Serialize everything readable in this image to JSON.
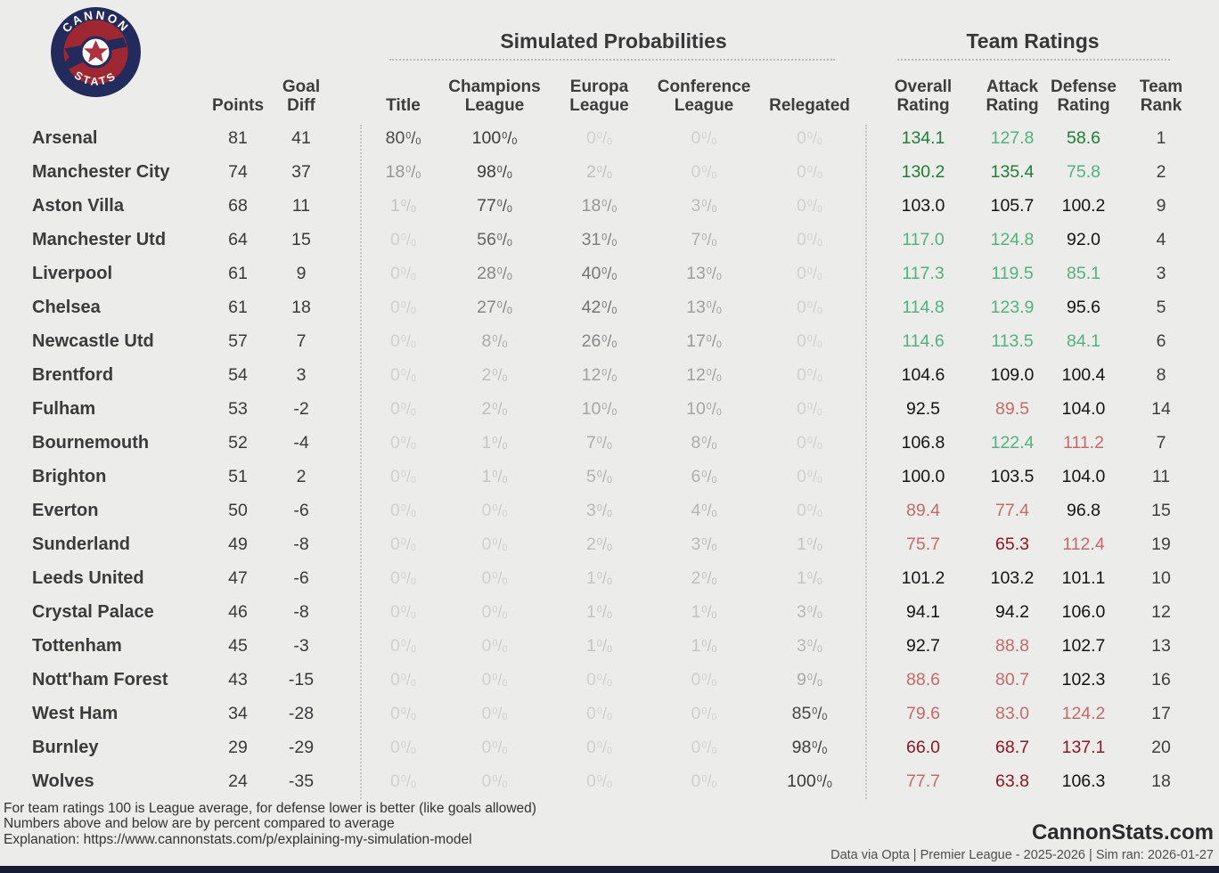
{
  "logo": {
    "top_text": "CANNON",
    "bottom_text": "STATS"
  },
  "colors": {
    "background": "#ececeb",
    "accent_navy": "#232a5c",
    "accent_red": "#9e2732",
    "green_strong": "#1e7e33",
    "green_mid": "#52b27d",
    "neutral": "#141414",
    "red_light": "#c66a6a",
    "red_strong": "#8f1622",
    "bottom_bar": "#171c33"
  },
  "chart_data": {
    "type": "table",
    "sections": {
      "probabilities": "Simulated Probabilities",
      "ratings": "Team Ratings"
    },
    "columns": {
      "points": "Points",
      "goal_diff": "Goal\nDiff",
      "title": "Title",
      "champions": "Champions\nLeague",
      "europa": "Europa\nLeague",
      "conference": "Conference\nLeague",
      "relegated": "Relegated",
      "overall": "Overall\nRating",
      "attack": "Attack\nRating",
      "defense": "Defense\nRating",
      "rank": "Team\nRank"
    },
    "rows": [
      {
        "team": "Arsenal",
        "points": 81,
        "goal_diff": 41,
        "probs": {
          "title": 80,
          "champions": 100,
          "europa": 0,
          "conference": 0,
          "relegated": 0
        },
        "ratings": {
          "overall": {
            "value": "134.1",
            "tone": "green_strong"
          },
          "attack": {
            "value": "127.8",
            "tone": "green_mid"
          },
          "defense": {
            "value": "58.6",
            "tone": "green_strong"
          }
        },
        "rank": 1
      },
      {
        "team": "Manchester City",
        "points": 74,
        "goal_diff": 37,
        "probs": {
          "title": 18,
          "champions": 98,
          "europa": 2,
          "conference": 0,
          "relegated": 0
        },
        "ratings": {
          "overall": {
            "value": "130.2",
            "tone": "green_strong"
          },
          "attack": {
            "value": "135.4",
            "tone": "green_strong"
          },
          "defense": {
            "value": "75.8",
            "tone": "green_mid"
          }
        },
        "rank": 2
      },
      {
        "team": "Aston Villa",
        "points": 68,
        "goal_diff": 11,
        "probs": {
          "title": 1,
          "champions": 77,
          "europa": 18,
          "conference": 3,
          "relegated": 0
        },
        "ratings": {
          "overall": {
            "value": "103.0",
            "tone": "neutral"
          },
          "attack": {
            "value": "105.7",
            "tone": "neutral"
          },
          "defense": {
            "value": "100.2",
            "tone": "neutral"
          }
        },
        "rank": 9
      },
      {
        "team": "Manchester Utd",
        "points": 64,
        "goal_diff": 15,
        "probs": {
          "title": 0,
          "champions": 56,
          "europa": 31,
          "conference": 7,
          "relegated": 0
        },
        "ratings": {
          "overall": {
            "value": "117.0",
            "tone": "green_mid"
          },
          "attack": {
            "value": "124.8",
            "tone": "green_mid"
          },
          "defense": {
            "value": "92.0",
            "tone": "neutral"
          }
        },
        "rank": 4
      },
      {
        "team": "Liverpool",
        "points": 61,
        "goal_diff": 9,
        "probs": {
          "title": 0,
          "champions": 28,
          "europa": 40,
          "conference": 13,
          "relegated": 0
        },
        "ratings": {
          "overall": {
            "value": "117.3",
            "tone": "green_mid"
          },
          "attack": {
            "value": "119.5",
            "tone": "green_mid"
          },
          "defense": {
            "value": "85.1",
            "tone": "green_mid"
          }
        },
        "rank": 3
      },
      {
        "team": "Chelsea",
        "points": 61,
        "goal_diff": 18,
        "probs": {
          "title": 0,
          "champions": 27,
          "europa": 42,
          "conference": 13,
          "relegated": 0
        },
        "ratings": {
          "overall": {
            "value": "114.8",
            "tone": "green_mid"
          },
          "attack": {
            "value": "123.9",
            "tone": "green_mid"
          },
          "defense": {
            "value": "95.6",
            "tone": "neutral"
          }
        },
        "rank": 5
      },
      {
        "team": "Newcastle Utd",
        "points": 57,
        "goal_diff": 7,
        "probs": {
          "title": 0,
          "champions": 8,
          "europa": 26,
          "conference": 17,
          "relegated": 0
        },
        "ratings": {
          "overall": {
            "value": "114.6",
            "tone": "green_mid"
          },
          "attack": {
            "value": "113.5",
            "tone": "green_mid"
          },
          "defense": {
            "value": "84.1",
            "tone": "green_mid"
          }
        },
        "rank": 6
      },
      {
        "team": "Brentford",
        "points": 54,
        "goal_diff": 3,
        "probs": {
          "title": 0,
          "champions": 2,
          "europa": 12,
          "conference": 12,
          "relegated": 0
        },
        "ratings": {
          "overall": {
            "value": "104.6",
            "tone": "neutral"
          },
          "attack": {
            "value": "109.0",
            "tone": "neutral"
          },
          "defense": {
            "value": "100.4",
            "tone": "neutral"
          }
        },
        "rank": 8
      },
      {
        "team": "Fulham",
        "points": 53,
        "goal_diff": -2,
        "probs": {
          "title": 0,
          "champions": 2,
          "europa": 10,
          "conference": 10,
          "relegated": 0
        },
        "ratings": {
          "overall": {
            "value": "92.5",
            "tone": "neutral"
          },
          "attack": {
            "value": "89.5",
            "tone": "red_light"
          },
          "defense": {
            "value": "104.0",
            "tone": "neutral"
          }
        },
        "rank": 14
      },
      {
        "team": "Bournemouth",
        "points": 52,
        "goal_diff": -4,
        "probs": {
          "title": 0,
          "champions": 1,
          "europa": 7,
          "conference": 8,
          "relegated": 0
        },
        "ratings": {
          "overall": {
            "value": "106.8",
            "tone": "neutral"
          },
          "attack": {
            "value": "122.4",
            "tone": "green_mid"
          },
          "defense": {
            "value": "111.2",
            "tone": "red_light"
          }
        },
        "rank": 7
      },
      {
        "team": "Brighton",
        "points": 51,
        "goal_diff": 2,
        "probs": {
          "title": 0,
          "champions": 1,
          "europa": 5,
          "conference": 6,
          "relegated": 0
        },
        "ratings": {
          "overall": {
            "value": "100.0",
            "tone": "neutral"
          },
          "attack": {
            "value": "103.5",
            "tone": "neutral"
          },
          "defense": {
            "value": "104.0",
            "tone": "neutral"
          }
        },
        "rank": 11
      },
      {
        "team": "Everton",
        "points": 50,
        "goal_diff": -6,
        "probs": {
          "title": 0,
          "champions": 0,
          "europa": 3,
          "conference": 4,
          "relegated": 0
        },
        "ratings": {
          "overall": {
            "value": "89.4",
            "tone": "red_light"
          },
          "attack": {
            "value": "77.4",
            "tone": "red_light"
          },
          "defense": {
            "value": "96.8",
            "tone": "neutral"
          }
        },
        "rank": 15
      },
      {
        "team": "Sunderland",
        "points": 49,
        "goal_diff": -8,
        "probs": {
          "title": 0,
          "champions": 0,
          "europa": 2,
          "conference": 3,
          "relegated": 1
        },
        "ratings": {
          "overall": {
            "value": "75.7",
            "tone": "red_light"
          },
          "attack": {
            "value": "65.3",
            "tone": "red_strong"
          },
          "defense": {
            "value": "112.4",
            "tone": "red_light"
          }
        },
        "rank": 19
      },
      {
        "team": "Leeds United",
        "points": 47,
        "goal_diff": -6,
        "probs": {
          "title": 0,
          "champions": 0,
          "europa": 1,
          "conference": 2,
          "relegated": 1
        },
        "ratings": {
          "overall": {
            "value": "101.2",
            "tone": "neutral"
          },
          "attack": {
            "value": "103.2",
            "tone": "neutral"
          },
          "defense": {
            "value": "101.1",
            "tone": "neutral"
          }
        },
        "rank": 10
      },
      {
        "team": "Crystal Palace",
        "points": 46,
        "goal_diff": -8,
        "probs": {
          "title": 0,
          "champions": 0,
          "europa": 1,
          "conference": 1,
          "relegated": 3
        },
        "ratings": {
          "overall": {
            "value": "94.1",
            "tone": "neutral"
          },
          "attack": {
            "value": "94.2",
            "tone": "neutral"
          },
          "defense": {
            "value": "106.0",
            "tone": "neutral"
          }
        },
        "rank": 12
      },
      {
        "team": "Tottenham",
        "points": 45,
        "goal_diff": -3,
        "probs": {
          "title": 0,
          "champions": 0,
          "europa": 1,
          "conference": 1,
          "relegated": 3
        },
        "ratings": {
          "overall": {
            "value": "92.7",
            "tone": "neutral"
          },
          "attack": {
            "value": "88.8",
            "tone": "red_light"
          },
          "defense": {
            "value": "102.7",
            "tone": "neutral"
          }
        },
        "rank": 13
      },
      {
        "team": "Nott'ham Forest",
        "points": 43,
        "goal_diff": -15,
        "probs": {
          "title": 0,
          "champions": 0,
          "europa": 0,
          "conference": 0,
          "relegated": 9
        },
        "ratings": {
          "overall": {
            "value": "88.6",
            "tone": "red_light"
          },
          "attack": {
            "value": "80.7",
            "tone": "red_light"
          },
          "defense": {
            "value": "102.3",
            "tone": "neutral"
          }
        },
        "rank": 16
      },
      {
        "team": "West Ham",
        "points": 34,
        "goal_diff": -28,
        "probs": {
          "title": 0,
          "champions": 0,
          "europa": 0,
          "conference": 0,
          "relegated": 85
        },
        "ratings": {
          "overall": {
            "value": "79.6",
            "tone": "red_light"
          },
          "attack": {
            "value": "83.0",
            "tone": "red_light"
          },
          "defense": {
            "value": "124.2",
            "tone": "red_light"
          }
        },
        "rank": 17
      },
      {
        "team": "Burnley",
        "points": 29,
        "goal_diff": -29,
        "probs": {
          "title": 0,
          "champions": 0,
          "europa": 0,
          "conference": 0,
          "relegated": 98
        },
        "ratings": {
          "overall": {
            "value": "66.0",
            "tone": "red_strong"
          },
          "attack": {
            "value": "68.7",
            "tone": "red_strong"
          },
          "defense": {
            "value": "137.1",
            "tone": "red_strong"
          }
        },
        "rank": 20
      },
      {
        "team": "Wolves",
        "points": 24,
        "goal_diff": -35,
        "probs": {
          "title": 0,
          "champions": 0,
          "europa": 0,
          "conference": 0,
          "relegated": 100
        },
        "ratings": {
          "overall": {
            "value": "77.7",
            "tone": "red_light"
          },
          "attack": {
            "value": "63.8",
            "tone": "red_strong"
          },
          "defense": {
            "value": "106.3",
            "tone": "neutral"
          }
        },
        "rank": 18
      }
    ]
  },
  "footer": {
    "notes": [
      "For team ratings 100 is League average, for defense lower is better (like goals allowed)",
      "Numbers above and below are by percent compared to average",
      "Explanation: https://www.cannonstats.com/p/explaining-my-simulation-model"
    ],
    "brand": "CannonStats.com",
    "source_line": "Data via Opta | Premier League - 2025-2026 | Sim ran: 2026-01-27"
  }
}
